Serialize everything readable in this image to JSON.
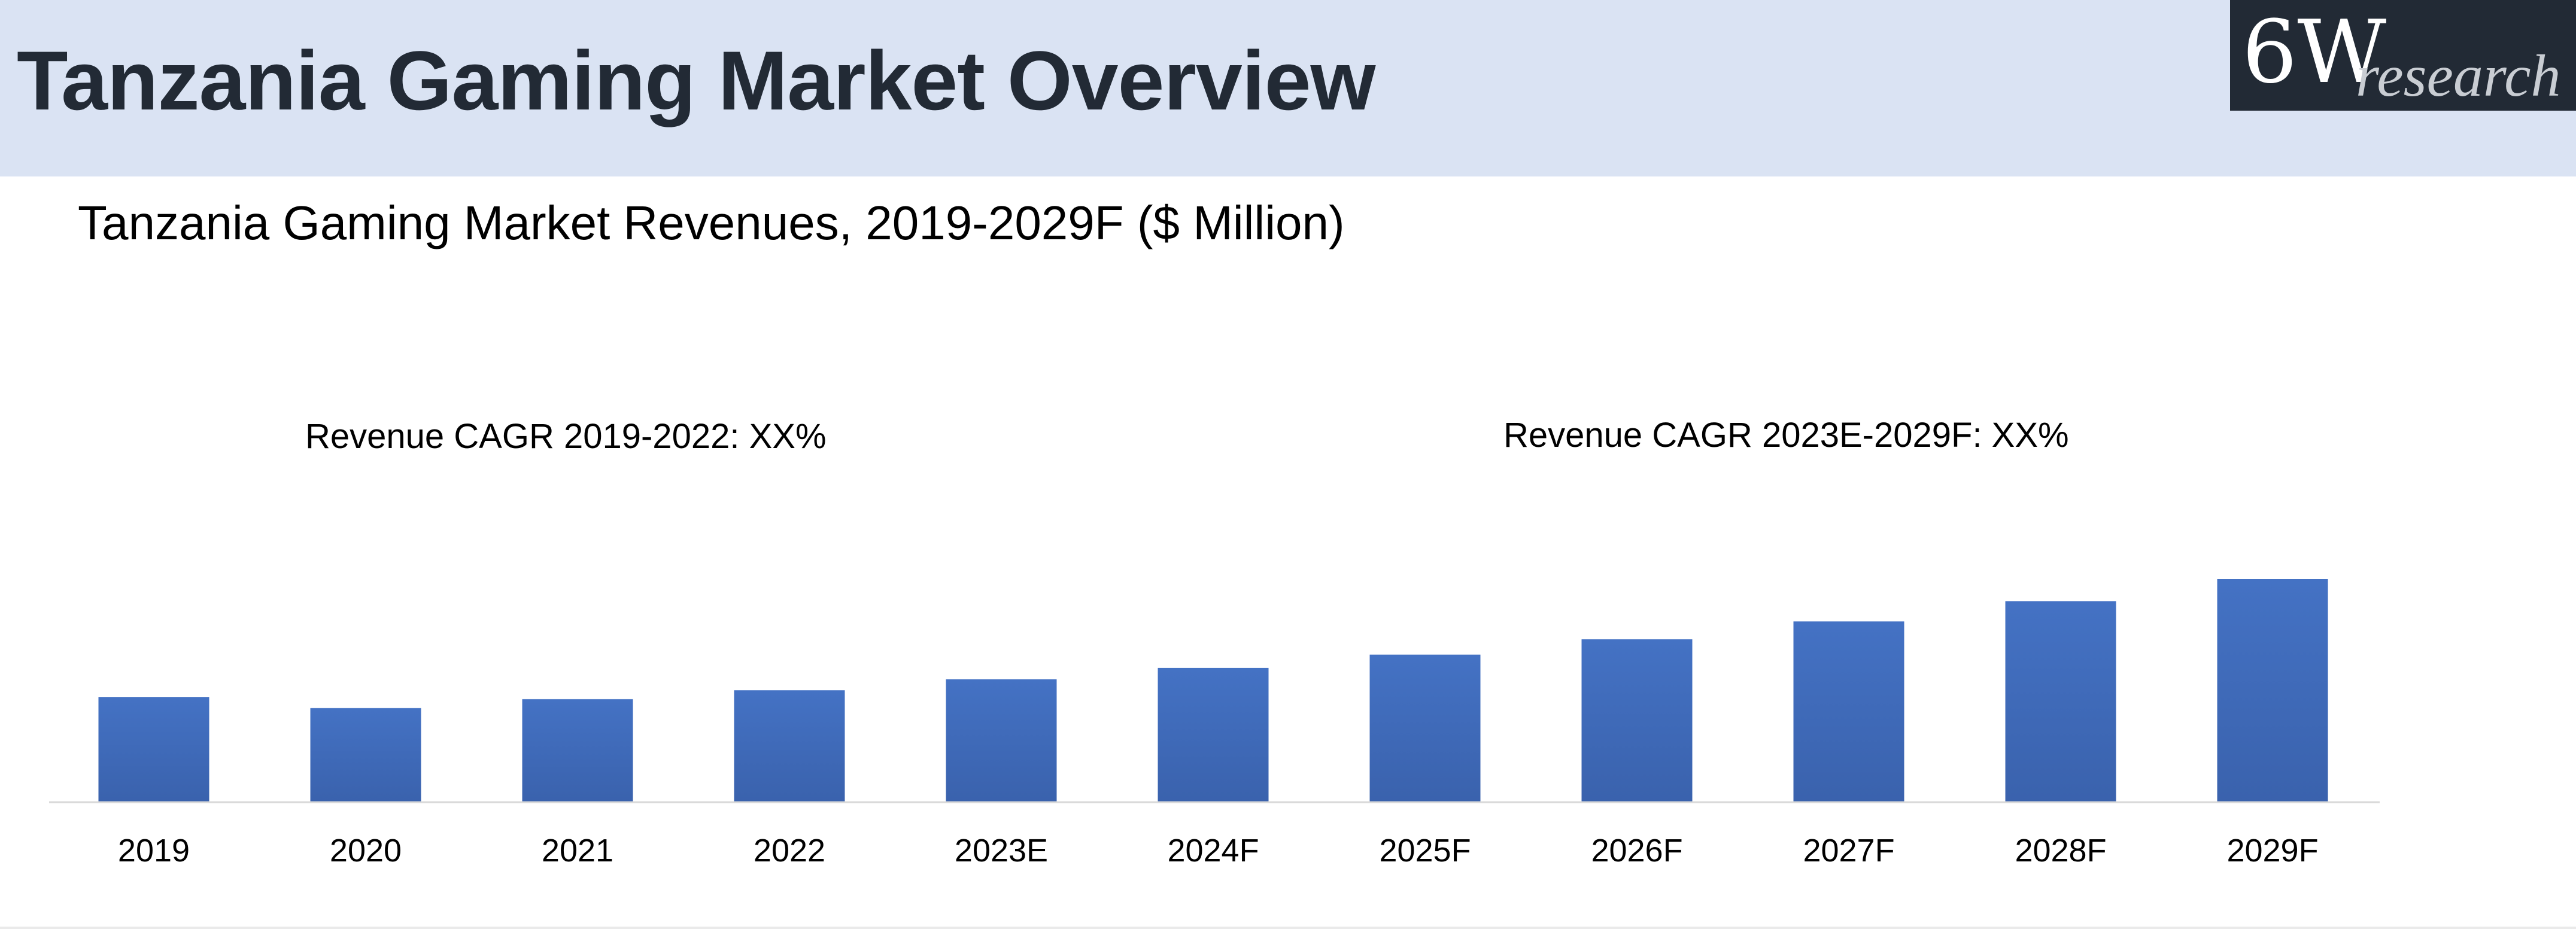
{
  "header": {
    "title": "Tanzania Gaming Market Overview"
  },
  "logo": {
    "main": "6W",
    "sub": "research"
  },
  "annotations": {
    "cagr_left": "Revenue CAGR 2019-2022: XX%",
    "cagr_right": "Revenue CAGR 2023E-2029F: XX%"
  },
  "colors": {
    "header_bg": "#dae3f3",
    "bar": "#4472c4",
    "bar_dark": "#3a62ad",
    "logo_bg": "#222a35"
  },
  "chart_data": {
    "type": "bar",
    "title": "Tanzania Gaming Market Revenues, 2019-2029F ($ Million)",
    "categories": [
      "2019",
      "2020",
      "2021",
      "2022",
      "2023E",
      "2024F",
      "2025F",
      "2026F",
      "2027F",
      "2028F",
      "2029F"
    ],
    "series": [
      {
        "name": "Revenues",
        "values": [
          47,
          42,
          46,
          50,
          55,
          60,
          66,
          73,
          81,
          90,
          100
        ]
      }
    ],
    "xlabel": "",
    "ylabel": "",
    "ylim": [
      0,
      100
    ],
    "grid": false,
    "legend": "none",
    "data_labels": false
  }
}
